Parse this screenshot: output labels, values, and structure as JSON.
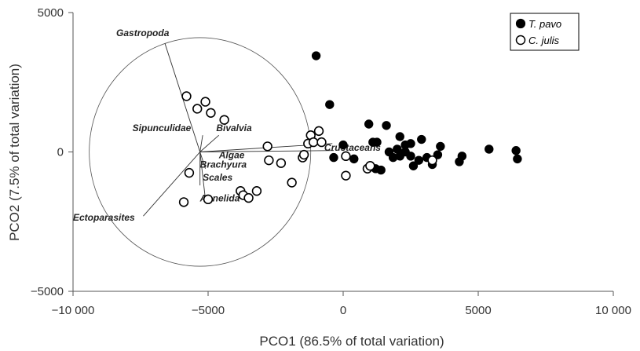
{
  "chart_data": {
    "type": "scatter",
    "xlabel": "PCO1 (86.5% of total variation)",
    "ylabel": "PCO2 (7.5% of total variation)",
    "xlim": [
      -10000,
      10000
    ],
    "ylim": [
      -5000,
      5000
    ],
    "x_ticks": [
      {
        "value": -10000,
        "label": "−10 000"
      },
      {
        "value": -5000,
        "label": "−5000"
      },
      {
        "value": 0,
        "label": "0"
      },
      {
        "value": 5000,
        "label": "5000"
      },
      {
        "value": 10000,
        "label": "10 000"
      }
    ],
    "y_ticks": [
      {
        "value": 5000,
        "label": "5000"
      },
      {
        "value": 0,
        "label": "0"
      },
      {
        "value": -5000,
        "label": "−5000"
      }
    ],
    "grid": false,
    "legend_position": "top-right",
    "series": [
      {
        "name": "T. pavo",
        "marker": "filled-circle",
        "color": "#000000",
        "points": [
          [
            -1000,
            3450
          ],
          [
            -500,
            1700
          ],
          [
            950,
            1000
          ],
          [
            1600,
            950
          ],
          [
            -350,
            -200
          ],
          [
            0,
            250
          ],
          [
            400,
            -250
          ],
          [
            1100,
            350
          ],
          [
            1250,
            350
          ],
          [
            2100,
            550
          ],
          [
            2300,
            250
          ],
          [
            2500,
            300
          ],
          [
            2900,
            450
          ],
          [
            3600,
            200
          ],
          [
            1700,
            0
          ],
          [
            1850,
            -200
          ],
          [
            2000,
            100
          ],
          [
            2100,
            -150
          ],
          [
            2300,
            0
          ],
          [
            2500,
            -150
          ],
          [
            2600,
            -500
          ],
          [
            2800,
            -300
          ],
          [
            3100,
            -200
          ],
          [
            3300,
            -450
          ],
          [
            3500,
            -100
          ],
          [
            4300,
            -350
          ],
          [
            4400,
            -150
          ],
          [
            5400,
            100
          ],
          [
            6400,
            50
          ],
          [
            6450,
            -250
          ],
          [
            1400,
            -650
          ],
          [
            1200,
            -600
          ]
        ]
      },
      {
        "name": "C. julis",
        "marker": "open-circle",
        "color": "#000000",
        "points": [
          [
            -5800,
            2000
          ],
          [
            -5400,
            1550
          ],
          [
            -5100,
            1800
          ],
          [
            -4900,
            1400
          ],
          [
            -4400,
            1150
          ],
          [
            -5700,
            -750
          ],
          [
            -5900,
            -1800
          ],
          [
            -5000,
            -1700
          ],
          [
            -3800,
            -1400
          ],
          [
            -3700,
            -1550
          ],
          [
            -3500,
            -1650
          ],
          [
            -3200,
            -1400
          ],
          [
            -2800,
            200
          ],
          [
            -2750,
            -300
          ],
          [
            -2300,
            -400
          ],
          [
            -1900,
            -1100
          ],
          [
            -1500,
            -200
          ],
          [
            -1450,
            -100
          ],
          [
            -1300,
            300
          ],
          [
            -1200,
            600
          ],
          [
            -1100,
            350
          ],
          [
            -900,
            750
          ],
          [
            -800,
            350
          ],
          [
            100,
            -150
          ],
          [
            100,
            -850
          ],
          [
            900,
            -600
          ],
          [
            1000,
            -500
          ],
          [
            3300,
            -300
          ]
        ]
      }
    ],
    "vectors": [
      {
        "label": "Gastropoda",
        "end": [
          -6600,
          3900
        ],
        "label_at": [
          -8400,
          4150
        ]
      },
      {
        "label": "Sipunculidae",
        "end": [
          -5200,
          600
        ],
        "label_at": [
          -7800,
          750
        ]
      },
      {
        "label": "Bivalvia",
        "end": [
          -4600,
          600
        ],
        "label_at": [
          -4700,
          750
        ]
      },
      {
        "label": "Algae",
        "end": [
          -350,
          50
        ],
        "label_at": [
          -4600,
          -230
        ]
      },
      {
        "label": "Crustaceans",
        "end": [
          -400,
          300
        ],
        "label_at": [
          -700,
          40
        ]
      },
      {
        "label": "Brachyura",
        "end": [
          -5100,
          -600
        ],
        "label_at": [
          -5300,
          -570
        ]
      },
      {
        "label": "Scales",
        "end": [
          -5300,
          -1200
        ],
        "label_at": [
          -5200,
          -1030
        ]
      },
      {
        "label": "Annelida",
        "end": [
          -5100,
          -1700
        ],
        "label_at": [
          -5300,
          -1770
        ]
      },
      {
        "label": "Ectoparasites",
        "end": [
          -7400,
          -2300
        ],
        "label_at": [
          -10000,
          -2470
        ]
      }
    ],
    "vector_origin": [
      -5300,
      0
    ],
    "circle_radius_units": 4100
  }
}
